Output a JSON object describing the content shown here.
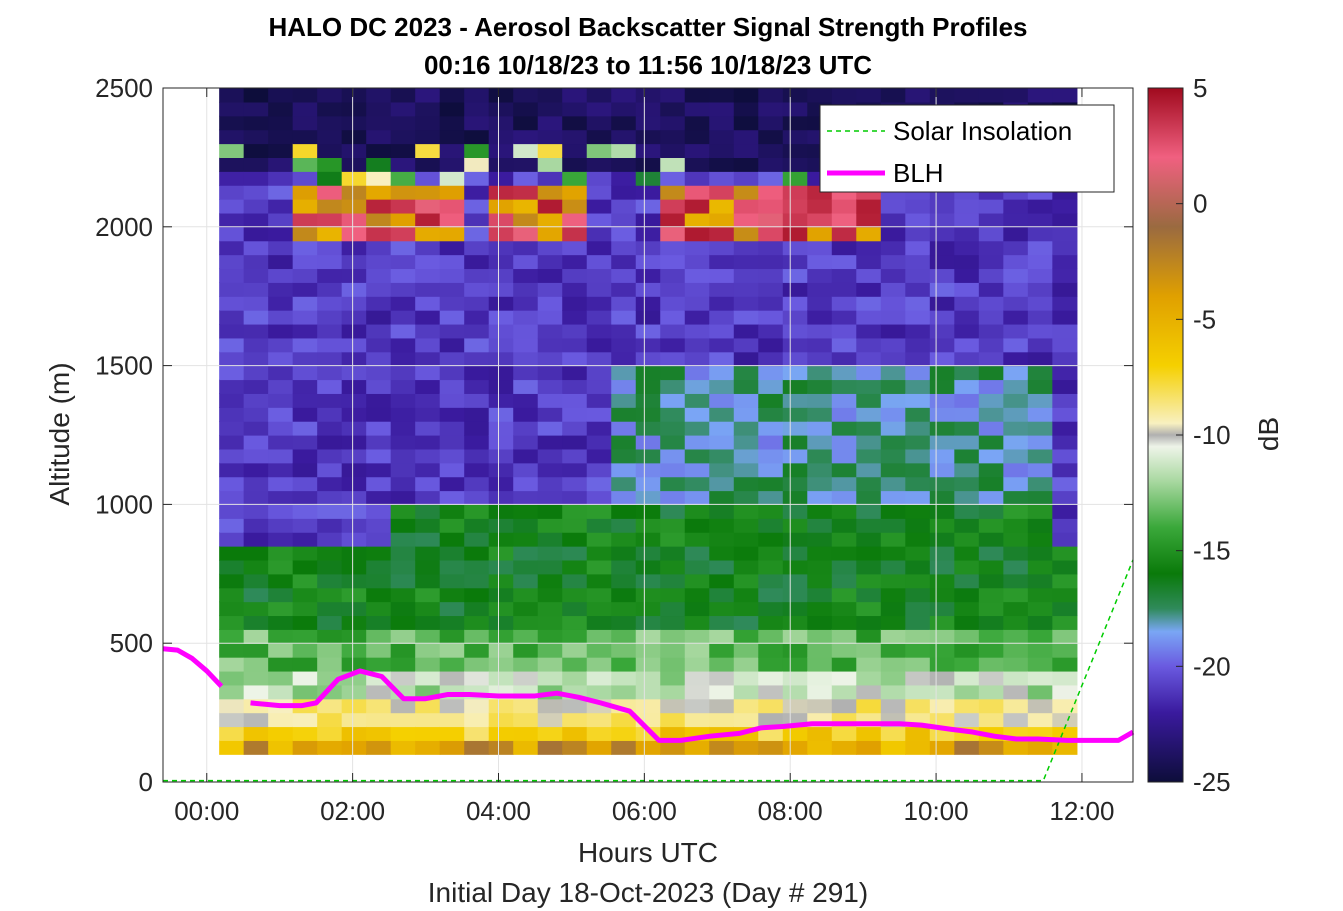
{
  "chart_data": {
    "type": "heatmap",
    "title": "HALO DC 2023 - Aerosol Backscatter Signal Strength Profiles",
    "subtitle": "00:16 10/18/23 to 11:56 10/18/23  UTC",
    "xlabel": "Hours UTC",
    "xlabel2": "Initial Day 18-Oct-2023 (Day # 291)",
    "ylabel": "Altitude (m)",
    "colorbar_label": "dB",
    "xlim_hours": [
      -0.6,
      12.7
    ],
    "ylim": [
      0,
      2500
    ],
    "clim": [
      -25,
      5
    ],
    "x_ticks": [
      {
        "value": 0,
        "label": "00:00"
      },
      {
        "value": 2,
        "label": "02:00"
      },
      {
        "value": 4,
        "label": "04:00"
      },
      {
        "value": 6,
        "label": "06:00"
      },
      {
        "value": 8,
        "label": "08:00"
      },
      {
        "value": 10,
        "label": "10:00"
      },
      {
        "value": 12,
        "label": "12:00"
      }
    ],
    "y_ticks": [
      {
        "value": 0,
        "label": "0"
      },
      {
        "value": 500,
        "label": "500"
      },
      {
        "value": 1000,
        "label": "1000"
      },
      {
        "value": 1500,
        "label": "1500"
      },
      {
        "value": 2000,
        "label": "2000"
      },
      {
        "value": 2500,
        "label": "2500"
      }
    ],
    "colorbar_ticks": [
      {
        "value": 5,
        "label": "5"
      },
      {
        "value": 0,
        "label": "0"
      },
      {
        "value": -5,
        "label": "-5"
      },
      {
        "value": -10,
        "label": "-10"
      },
      {
        "value": -15,
        "label": "-15"
      },
      {
        "value": -20,
        "label": "-20"
      },
      {
        "value": -25,
        "label": "-25"
      }
    ],
    "grid": true,
    "legend_position": "top-right",
    "legend": [
      {
        "name": "Solar Insolation",
        "color": "#00cc00",
        "style": "dashed"
      },
      {
        "name": "BLH",
        "color": "#ff00ff",
        "style": "solid"
      }
    ],
    "heatmap": {
      "x_start_hours": 0.17,
      "x_end_hours": 11.93,
      "y_start": 100,
      "y_end": 2500,
      "x_bins": 35,
      "y_bins": 48,
      "colormap_stops": [
        {
          "value": -25,
          "color": "#0d0d3a"
        },
        {
          "value": -22,
          "color": "#3a1a9e"
        },
        {
          "value": -20,
          "color": "#6a5ae0"
        },
        {
          "value": -18.5,
          "color": "#7aa6f5"
        },
        {
          "value": -17.5,
          "color": "#2f8a5a"
        },
        {
          "value": -16,
          "color": "#0a7a0a"
        },
        {
          "value": -14,
          "color": "#3aa83a"
        },
        {
          "value": -12,
          "color": "#a8d8a0"
        },
        {
          "value": -10.5,
          "color": "#eef4e8"
        },
        {
          "value": -10,
          "color": "#b0b0b0"
        },
        {
          "value": -9.5,
          "color": "#f8f0c0"
        },
        {
          "value": -7,
          "color": "#f5d000"
        },
        {
          "value": -4,
          "color": "#e0a000"
        },
        {
          "value": -1,
          "color": "#9a6a40"
        },
        {
          "value": 2,
          "color": "#f06080"
        },
        {
          "value": 5,
          "color": "#a00a1e"
        }
      ]
    },
    "series": [
      {
        "name": "BLH",
        "segments": [
          {
            "x": [
              -0.6,
              -0.4,
              -0.2,
              0.0,
              0.2
            ],
            "y": [
              480,
              475,
              445,
              400,
              345
            ]
          },
          {
            "x": [
              0.6,
              0.8,
              1.0,
              1.3,
              1.5,
              1.8,
              2.1,
              2.4,
              2.7,
              3.0,
              3.3,
              3.6,
              4.0,
              4.5,
              4.8,
              5.1,
              5.4,
              5.8,
              6.2,
              6.5,
              6.9,
              7.3,
              7.6,
              7.9,
              8.3,
              8.6,
              9.0,
              9.5,
              9.8,
              10.2,
              10.5,
              10.8,
              11.1,
              11.4,
              11.8,
              12.2,
              12.5,
              12.7
            ],
            "y": [
              285,
              280,
              275,
              275,
              285,
              370,
              400,
              380,
              300,
              300,
              315,
              315,
              310,
              310,
              320,
              305,
              285,
              255,
              150,
              150,
              165,
              175,
              195,
              200,
              210,
              210,
              210,
              210,
              205,
              190,
              180,
              165,
              155,
              155,
              150,
              150,
              150,
              180
            ]
          }
        ]
      },
      {
        "name": "Solar Insolation",
        "x": [
          -0.6,
          11.47,
          12.7
        ],
        "y": [
          5,
          5,
          800
        ]
      }
    ]
  }
}
